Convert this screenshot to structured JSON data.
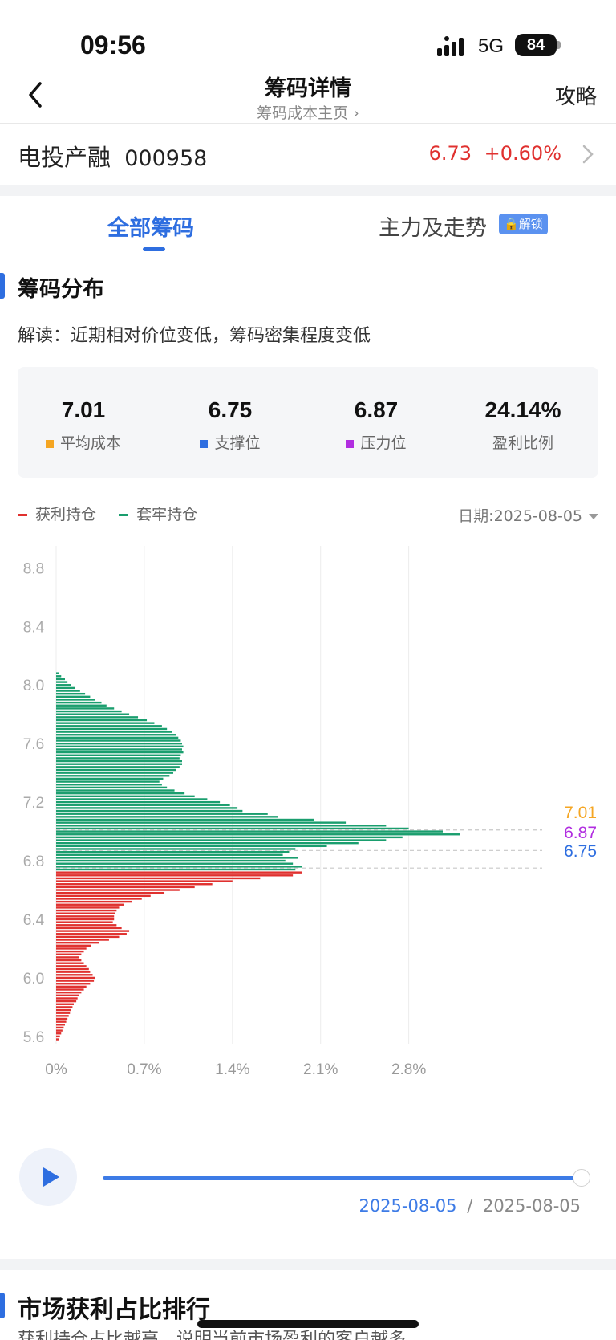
{
  "status": {
    "time": "09:56",
    "network": "5G",
    "battery": "84"
  },
  "nav": {
    "title": "筹码详情",
    "subtitle": "筹码成本主页",
    "right": "攻略"
  },
  "stock": {
    "name": "电投产融",
    "code": "000958",
    "price": "6.73",
    "change": "+0.60%"
  },
  "tabs": {
    "all": "全部筹码",
    "main": "主力及走势",
    "lock_badge": "解锁"
  },
  "section": {
    "title": "筹码分布",
    "interpretation": "解读：近期相对价位变低，筹码密集程度变低"
  },
  "stats": [
    {
      "value": "7.01",
      "label": "平均成本",
      "color": "#f5a623"
    },
    {
      "value": "6.75",
      "label": "支撑位",
      "color": "#2e6ee0"
    },
    {
      "value": "6.87",
      "label": "压力位",
      "color": "#b12ee0"
    },
    {
      "value": "24.14%",
      "label": "盈利比例",
      "color": ""
    }
  ],
  "legend": {
    "profit": "获利持仓",
    "trapped": "套牢持仓",
    "profit_color": "#e0312f",
    "trapped_color": "#1a9e6e"
  },
  "date_label": "日期:2025-08-05",
  "chart_data": {
    "type": "bar",
    "orientation": "horizontal",
    "y_ticks": [
      "8.8",
      "8.4",
      "8.0",
      "7.6",
      "7.2",
      "6.8",
      "6.4",
      "6.0",
      "5.6"
    ],
    "x_ticks": [
      "0%",
      "0.7%",
      "1.4%",
      "2.1%",
      "2.8%"
    ],
    "ylim": [
      5.55,
      8.95
    ],
    "xlim": [
      0,
      3.3
    ],
    "split_price": 6.73,
    "markers": [
      {
        "label": "7.01",
        "price": 7.01,
        "color": "#f5a623"
      },
      {
        "label": "6.87",
        "price": 6.87,
        "color": "#b12ee0"
      },
      {
        "label": "6.75",
        "price": 6.75,
        "color": "#2e6ee0"
      }
    ],
    "series": [
      {
        "name": "套牢持仓",
        "color": "#1a9e6e",
        "points": [
          [
            8.08,
            0.02
          ],
          [
            8.06,
            0.04
          ],
          [
            8.04,
            0.07
          ],
          [
            8.02,
            0.09
          ],
          [
            8.0,
            0.12
          ],
          [
            7.98,
            0.15
          ],
          [
            7.96,
            0.19
          ],
          [
            7.94,
            0.23
          ],
          [
            7.92,
            0.27
          ],
          [
            7.9,
            0.31
          ],
          [
            7.88,
            0.36
          ],
          [
            7.86,
            0.4
          ],
          [
            7.84,
            0.46
          ],
          [
            7.82,
            0.52
          ],
          [
            7.8,
            0.58
          ],
          [
            7.78,
            0.65
          ],
          [
            7.76,
            0.72
          ],
          [
            7.74,
            0.78
          ],
          [
            7.72,
            0.84
          ],
          [
            7.7,
            0.88
          ],
          [
            7.68,
            0.92
          ],
          [
            7.66,
            0.95
          ],
          [
            7.64,
            0.97
          ],
          [
            7.62,
            0.99
          ],
          [
            7.6,
            1.0
          ],
          [
            7.58,
            1.01
          ],
          [
            7.56,
            1.0
          ],
          [
            7.54,
            1.01
          ],
          [
            7.52,
            0.99
          ],
          [
            7.5,
            0.98
          ],
          [
            7.48,
            1.0
          ],
          [
            7.46,
            1.0
          ],
          [
            7.44,
            0.98
          ],
          [
            7.42,
            0.95
          ],
          [
            7.4,
            0.93
          ],
          [
            7.38,
            0.9
          ],
          [
            7.36,
            0.85
          ],
          [
            7.34,
            0.82
          ],
          [
            7.32,
            0.84
          ],
          [
            7.3,
            0.88
          ],
          [
            7.28,
            0.94
          ],
          [
            7.26,
            1.02
          ],
          [
            7.24,
            1.1
          ],
          [
            7.22,
            1.2
          ],
          [
            7.2,
            1.3
          ],
          [
            7.18,
            1.38
          ],
          [
            7.16,
            1.44
          ],
          [
            7.14,
            1.48
          ],
          [
            7.12,
            1.68
          ],
          [
            7.1,
            1.76
          ],
          [
            7.08,
            2.05
          ],
          [
            7.06,
            2.3
          ],
          [
            7.04,
            2.62
          ],
          [
            7.02,
            2.8
          ],
          [
            7.0,
            3.07
          ],
          [
            6.98,
            3.21
          ],
          [
            6.96,
            2.75
          ],
          [
            6.94,
            2.62
          ],
          [
            6.92,
            2.4
          ],
          [
            6.9,
            2.15
          ],
          [
            6.88,
            1.9
          ],
          [
            6.86,
            1.85
          ],
          [
            6.84,
            1.8
          ],
          [
            6.82,
            1.92
          ],
          [
            6.8,
            1.82
          ],
          [
            6.78,
            1.88
          ],
          [
            6.76,
            1.95
          ],
          [
            6.74,
            1.9
          ]
        ]
      },
      {
        "name": "获利持仓",
        "color": "#e0312f",
        "points": [
          [
            6.72,
            1.95
          ],
          [
            6.7,
            1.88
          ],
          [
            6.68,
            1.62
          ],
          [
            6.66,
            1.4
          ],
          [
            6.64,
            1.24
          ],
          [
            6.62,
            1.1
          ],
          [
            6.6,
            0.98
          ],
          [
            6.58,
            0.86
          ],
          [
            6.56,
            0.75
          ],
          [
            6.54,
            0.68
          ],
          [
            6.52,
            0.6
          ],
          [
            6.5,
            0.54
          ],
          [
            6.48,
            0.5
          ],
          [
            6.46,
            0.48
          ],
          [
            6.44,
            0.47
          ],
          [
            6.42,
            0.46
          ],
          [
            6.4,
            0.46
          ],
          [
            6.38,
            0.45
          ],
          [
            6.36,
            0.48
          ],
          [
            6.34,
            0.52
          ],
          [
            6.32,
            0.58
          ],
          [
            6.3,
            0.56
          ],
          [
            6.28,
            0.5
          ],
          [
            6.26,
            0.42
          ],
          [
            6.24,
            0.34
          ],
          [
            6.22,
            0.28
          ],
          [
            6.2,
            0.24
          ],
          [
            6.18,
            0.22
          ],
          [
            6.16,
            0.2
          ],
          [
            6.14,
            0.18
          ],
          [
            6.12,
            0.2
          ],
          [
            6.1,
            0.22
          ],
          [
            6.08,
            0.24
          ],
          [
            6.06,
            0.26
          ],
          [
            6.04,
            0.27
          ],
          [
            6.02,
            0.29
          ],
          [
            6.0,
            0.31
          ],
          [
            5.98,
            0.3
          ],
          [
            5.96,
            0.27
          ],
          [
            5.94,
            0.24
          ],
          [
            5.92,
            0.22
          ],
          [
            5.9,
            0.2
          ],
          [
            5.88,
            0.18
          ],
          [
            5.86,
            0.17
          ],
          [
            5.84,
            0.16
          ],
          [
            5.82,
            0.14
          ],
          [
            5.8,
            0.13
          ],
          [
            5.78,
            0.12
          ],
          [
            5.76,
            0.11
          ],
          [
            5.74,
            0.1
          ],
          [
            5.72,
            0.09
          ],
          [
            5.7,
            0.08
          ],
          [
            5.68,
            0.07
          ],
          [
            5.66,
            0.06
          ],
          [
            5.64,
            0.05
          ],
          [
            5.62,
            0.04
          ],
          [
            5.6,
            0.03
          ],
          [
            5.58,
            0.02
          ]
        ]
      }
    ]
  },
  "player": {
    "current_date": "2025-08-05",
    "separator": "/",
    "end_date": "2025-08-05",
    "progress": 1.0
  },
  "section2": {
    "title": "市场获利占比排行",
    "desc": "获利持仓占比越高，说明当前市场盈利的客户越多"
  }
}
